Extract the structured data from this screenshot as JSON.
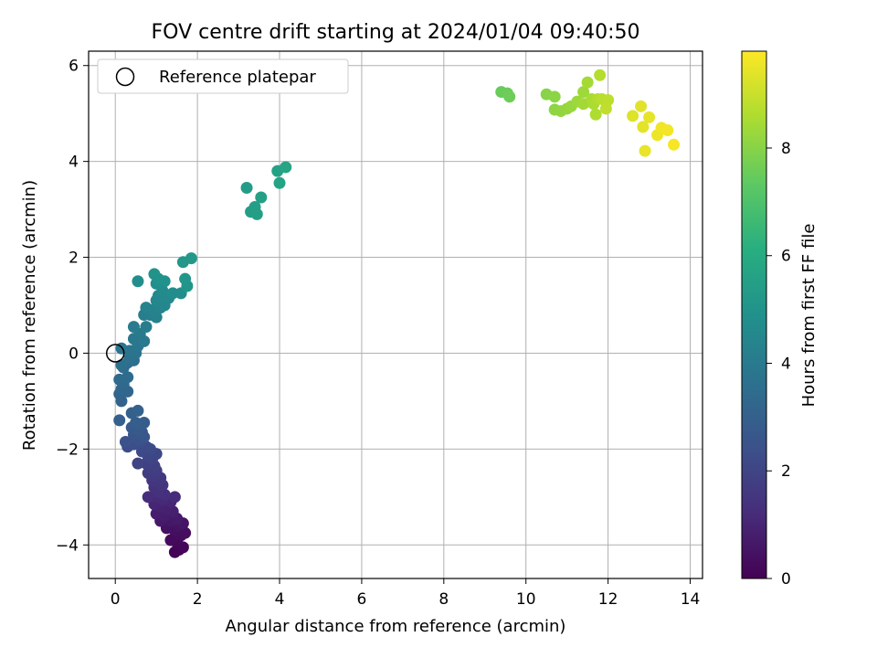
{
  "chart_data": {
    "type": "scatter",
    "title": "FOV centre drift starting at 2024/01/04 09:40:50",
    "xlabel": "Angular distance from reference (arcmin)",
    "ylabel": "Rotation from reference (arcmin)",
    "xlim": [
      -0.65,
      14.3
    ],
    "ylim": [
      -4.7,
      6.3
    ],
    "x_ticks": [
      0,
      2,
      4,
      6,
      8,
      10,
      12,
      14
    ],
    "y_ticks": [
      -4,
      -2,
      0,
      2,
      4,
      6
    ],
    "grid": true,
    "legend": {
      "placement": "top-left",
      "entries": [
        "Reference platepar"
      ]
    },
    "reference_point": {
      "x": 0,
      "y": 0,
      "label": "Reference platepar"
    },
    "colorbar": {
      "label": "Hours from first FF file",
      "range": [
        0,
        9.8
      ],
      "ticks": [
        0,
        2,
        4,
        6,
        8
      ],
      "colormap": "viridis"
    },
    "points": [
      [
        1.45,
        -4.15,
        0.05
      ],
      [
        1.55,
        -4.1,
        0.1
      ],
      [
        1.65,
        -4.05,
        0.15
      ],
      [
        1.5,
        -3.95,
        0.2
      ],
      [
        1.35,
        -3.9,
        0.25
      ],
      [
        1.6,
        -3.8,
        0.3
      ],
      [
        1.7,
        -3.75,
        0.35
      ],
      [
        1.45,
        -3.7,
        0.4
      ],
      [
        1.25,
        -3.65,
        0.45
      ],
      [
        1.55,
        -3.6,
        0.5
      ],
      [
        1.65,
        -3.55,
        0.55
      ],
      [
        1.35,
        -3.5,
        0.6
      ],
      [
        1.1,
        -3.5,
        0.65
      ],
      [
        1.5,
        -3.45,
        0.7
      ],
      [
        1.2,
        -3.4,
        0.75
      ],
      [
        1.0,
        -3.35,
        0.8
      ],
      [
        1.4,
        -3.3,
        0.85
      ],
      [
        1.25,
        -3.25,
        0.9
      ],
      [
        1.1,
        -3.2,
        0.95
      ],
      [
        0.95,
        -3.15,
        1.0
      ],
      [
        1.35,
        -3.1,
        1.05
      ],
      [
        1.15,
        -3.05,
        1.1
      ],
      [
        1.0,
        -3.0,
        1.15
      ],
      [
        1.45,
        -3.0,
        1.2
      ],
      [
        0.8,
        -3.0,
        1.25
      ],
      [
        1.2,
        -2.95,
        1.3
      ],
      [
        1.05,
        -2.9,
        1.35
      ],
      [
        0.95,
        -2.8,
        1.4
      ],
      [
        1.15,
        -2.75,
        1.45
      ],
      [
        1.05,
        -2.7,
        1.5
      ],
      [
        0.9,
        -2.65,
        1.55
      ],
      [
        1.1,
        -2.6,
        1.6
      ],
      [
        0.95,
        -2.55,
        1.65
      ],
      [
        0.8,
        -2.5,
        1.7
      ],
      [
        1.0,
        -2.45,
        1.75
      ],
      [
        0.85,
        -2.4,
        1.8
      ],
      [
        0.95,
        -2.35,
        1.85
      ],
      [
        0.75,
        -2.3,
        1.9
      ],
      [
        0.55,
        -2.3,
        1.95
      ],
      [
        0.9,
        -2.2,
        2.0
      ],
      [
        0.8,
        -2.15,
        2.05
      ],
      [
        1.0,
        -2.1,
        2.1
      ],
      [
        0.65,
        -2.05,
        2.15
      ],
      [
        0.85,
        -2.0,
        2.2
      ],
      [
        0.75,
        -1.95,
        2.25
      ],
      [
        0.3,
        -1.95,
        2.3
      ],
      [
        0.45,
        -1.9,
        2.35
      ],
      [
        0.6,
        -1.85,
        2.4
      ],
      [
        0.25,
        -1.85,
        2.45
      ],
      [
        0.55,
        -1.8,
        2.5
      ],
      [
        0.7,
        -1.75,
        2.55
      ],
      [
        0.45,
        -1.7,
        2.6
      ],
      [
        0.65,
        -1.65,
        2.65
      ],
      [
        0.55,
        -1.6,
        2.7
      ],
      [
        0.4,
        -1.55,
        2.75
      ],
      [
        0.6,
        -1.5,
        2.8
      ],
      [
        0.7,
        -1.45,
        2.85
      ],
      [
        0.5,
        -1.45,
        2.9
      ],
      [
        0.1,
        -1.4,
        2.95
      ],
      [
        0.4,
        -1.25,
        3.0
      ],
      [
        0.55,
        -1.2,
        3.05
      ],
      [
        0.15,
        -1.0,
        3.1
      ],
      [
        0.1,
        -0.85,
        3.15
      ],
      [
        0.3,
        -0.8,
        3.2
      ],
      [
        0.15,
        -0.75,
        3.25
      ],
      [
        0.2,
        -0.65,
        3.3
      ],
      [
        0.1,
        -0.55,
        3.35
      ],
      [
        0.3,
        -0.5,
        3.4
      ],
      [
        0.2,
        -0.3,
        3.45
      ],
      [
        0.3,
        -0.2,
        3.5
      ],
      [
        0.45,
        -0.15,
        3.55
      ],
      [
        0.15,
        -0.25,
        3.6
      ],
      [
        0.35,
        -0.1,
        3.65
      ],
      [
        0.5,
        0.0,
        3.7
      ],
      [
        0.35,
        0.05,
        3.75
      ],
      [
        0.15,
        0.1,
        3.8
      ],
      [
        0.55,
        0.15,
        3.85
      ],
      [
        0.45,
        0.3,
        3.9
      ],
      [
        0.7,
        0.25,
        3.95
      ],
      [
        0.6,
        0.4,
        4.0
      ],
      [
        0.45,
        0.55,
        4.05
      ],
      [
        0.75,
        0.55,
        4.1
      ],
      [
        0.7,
        0.8,
        4.15
      ],
      [
        0.85,
        0.8,
        4.2
      ],
      [
        1.0,
        0.75,
        4.25
      ],
      [
        0.75,
        0.95,
        4.3
      ],
      [
        0.9,
        0.9,
        4.35
      ],
      [
        1.1,
        0.95,
        4.4
      ],
      [
        1.0,
        1.1,
        4.45
      ],
      [
        1.2,
        1.0,
        4.5
      ],
      [
        1.05,
        1.2,
        4.55
      ],
      [
        1.3,
        1.15,
        4.6
      ],
      [
        1.15,
        1.3,
        4.65
      ],
      [
        1.4,
        1.25,
        4.7
      ],
      [
        1.6,
        1.25,
        4.75
      ],
      [
        0.55,
        1.5,
        4.8
      ],
      [
        1.0,
        1.45,
        4.85
      ],
      [
        1.2,
        1.5,
        4.9
      ],
      [
        1.05,
        1.55,
        4.95
      ],
      [
        0.95,
        1.65,
        5.0
      ],
      [
        1.75,
        1.4,
        5.05
      ],
      [
        1.7,
        1.55,
        5.1
      ],
      [
        1.65,
        1.9,
        5.15
      ],
      [
        1.85,
        1.98,
        5.2
      ],
      [
        3.2,
        3.45,
        5.35
      ],
      [
        3.3,
        2.95,
        5.4
      ],
      [
        3.4,
        3.05,
        5.45
      ],
      [
        3.45,
        2.9,
        5.5
      ],
      [
        3.55,
        3.25,
        5.55
      ],
      [
        3.95,
        3.8,
        5.6
      ],
      [
        4.0,
        3.55,
        5.65
      ],
      [
        4.15,
        3.88,
        5.7
      ],
      [
        9.4,
        5.45,
        7.5
      ],
      [
        9.55,
        5.42,
        7.55
      ],
      [
        9.6,
        5.35,
        7.6
      ],
      [
        10.5,
        5.4,
        8.0
      ],
      [
        10.7,
        5.35,
        8.05
      ],
      [
        10.7,
        5.08,
        8.1
      ],
      [
        10.85,
        5.05,
        8.15
      ],
      [
        11.0,
        5.1,
        8.2
      ],
      [
        11.1,
        5.15,
        8.25
      ],
      [
        11.25,
        5.25,
        8.3
      ],
      [
        11.4,
        5.45,
        8.35
      ],
      [
        11.4,
        5.2,
        8.4
      ],
      [
        11.5,
        5.65,
        8.45
      ],
      [
        11.6,
        5.3,
        8.5
      ],
      [
        11.65,
        5.2,
        8.55
      ],
      [
        11.7,
        4.98,
        8.6
      ],
      [
        11.75,
        5.3,
        8.65
      ],
      [
        11.8,
        5.8,
        8.7
      ],
      [
        11.85,
        5.3,
        8.75
      ],
      [
        12.0,
        5.28,
        8.8
      ],
      [
        11.95,
        5.1,
        8.85
      ],
      [
        12.6,
        4.95,
        9.3
      ],
      [
        12.8,
        5.15,
        9.35
      ],
      [
        12.85,
        4.72,
        9.4
      ],
      [
        13.0,
        4.92,
        9.45
      ],
      [
        12.9,
        4.22,
        9.5
      ],
      [
        13.2,
        4.55,
        9.55
      ],
      [
        13.3,
        4.7,
        9.6
      ],
      [
        13.45,
        4.65,
        9.65
      ],
      [
        13.6,
        4.35,
        9.7
      ]
    ]
  }
}
